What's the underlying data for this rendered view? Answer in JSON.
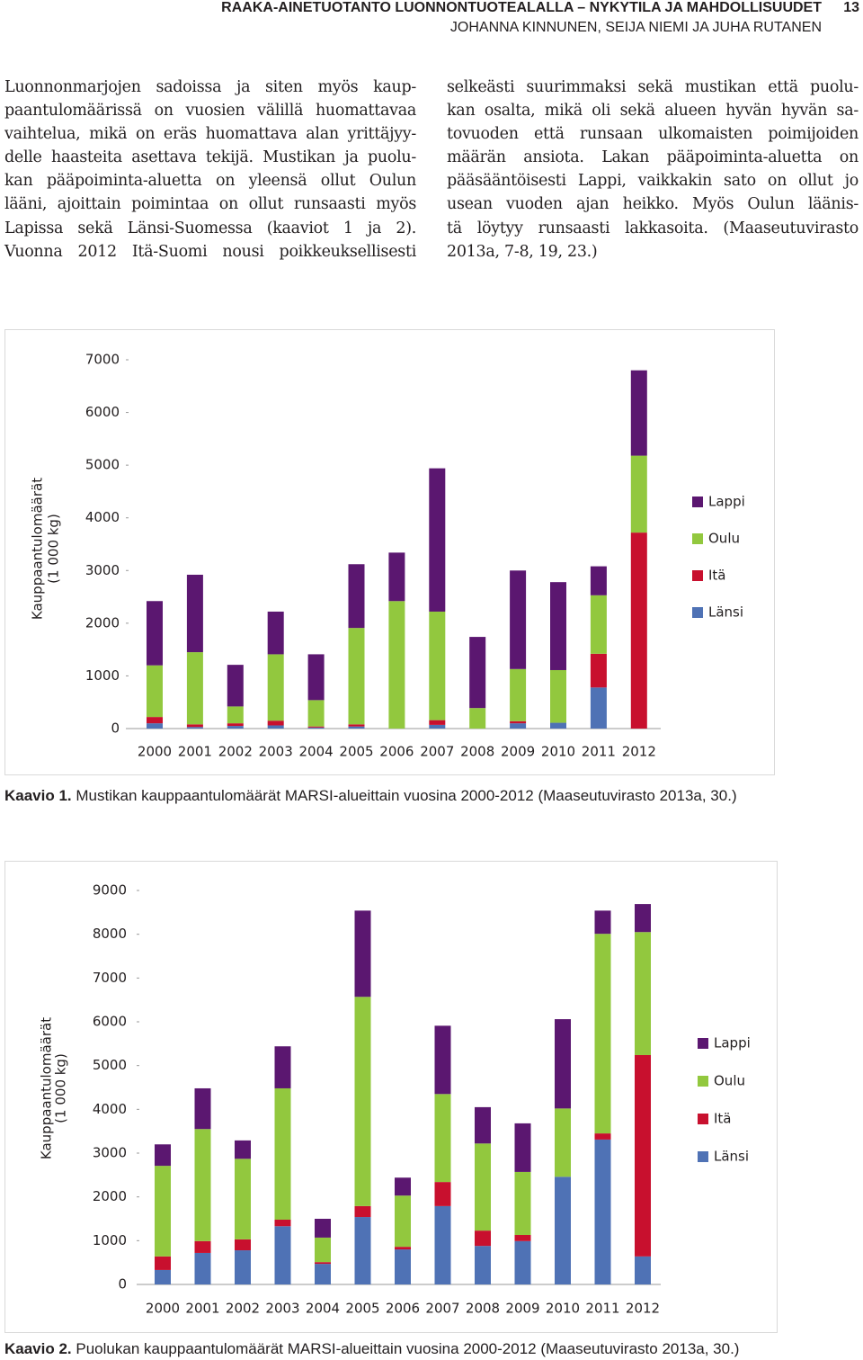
{
  "header": {
    "title": "RAAKA-AINETUOTANTO LUONNONTUOTEALALLA – NYKYTILA JA MAHDOLLISUUDET",
    "page": "13",
    "authors": "JOHANNA KINNUNEN, SEIJA NIEMI JA JUHA RUTANEN"
  },
  "columns": [
    [
      "Luonnonmarjojen sadoissa ja siten myös kaup-",
      "paantulomäärissä on vuosien välillä huomattavaa",
      "vaihtelua, mikä on eräs huomattava alan yrittäjyy-",
      "delle haasteita asettava tekijä. Mustikan ja puolu-",
      "kan pääpoiminta-aluetta on yleensä ollut Oulun",
      "lääni, ajoittain poimintaa on ollut runsaasti myös",
      "Lapissa sekä Länsi-Suomessa (kaaviot 1 ja 2).",
      "Vuonna 2012 Itä-Suomi nousi poikkeuksellisesti"
    ],
    [
      "selkeästi suurimmaksi sekä mustikan että puolu-",
      "kan osalta, mikä oli sekä alueen hyvän hyvän sa-",
      "tovuoden että runsaan ulkomaisten poimijoiden",
      "määrän ansiota. Lakan pääpoiminta-aluetta on",
      "pääsääntöisesti Lappi, vaikkakin sato on ollut jo",
      "usean vuoden ajan heikko. Myös Oulun läänis-",
      "tä löytyy runsaasti lakkasoita. (Maaseutuvirasto",
      "2013a, 7-8, 19, 23.)"
    ]
  ],
  "chart_data": [
    {
      "type": "stacked-bar",
      "caption_label": "Kaavio 1.",
      "caption": "Mustikan kauppaantulomäärät MARSI-alueittain vuosina 2000-2012 (Maaseutuvirasto 2013a, 30.)",
      "ylabel": [
        "Kauppaantulomäärät",
        "(1 000 kg)"
      ],
      "categories": [
        "2000",
        "2001",
        "2002",
        "2003",
        "2004",
        "2005",
        "2006",
        "2007",
        "2008",
        "2009",
        "2010",
        "2011",
        "2012"
      ],
      "series": [
        {
          "name": "Länsi",
          "color": "#4f72b5",
          "values": [
            100,
            30,
            50,
            60,
            20,
            40,
            0,
            70,
            0,
            100,
            110,
            780,
            0
          ]
        },
        {
          "name": "Itä",
          "color": "#c8102e",
          "values": [
            120,
            50,
            50,
            90,
            20,
            40,
            0,
            90,
            0,
            40,
            0,
            640,
            3720
          ]
        },
        {
          "name": "Oulu",
          "color": "#92c83e",
          "values": [
            980,
            1370,
            320,
            1260,
            500,
            1830,
            2420,
            2060,
            390,
            990,
            1000,
            1110,
            1460
          ]
        },
        {
          "name": "Lappi",
          "color": "#5b1770",
          "values": [
            1220,
            1470,
            790,
            810,
            870,
            1210,
            920,
            2720,
            1350,
            1870,
            1670,
            550,
            1620
          ]
        }
      ],
      "ylim": [
        0,
        7000
      ],
      "yticks": [
        0,
        1000,
        2000,
        3000,
        4000,
        5000,
        6000,
        7000
      ],
      "grid": false,
      "legend": "right"
    },
    {
      "type": "stacked-bar",
      "caption_label": "Kaavio 2.",
      "caption": "Puolukan kauppaantulomäärät MARSI-alueittain vuosina 2000-2012 (Maaseutuvirasto 2013a, 30.)",
      "ylabel": [
        "Kauppaantulomäärät",
        "(1 000 kg)"
      ],
      "categories": [
        "2000",
        "2001",
        "2002",
        "2003",
        "2004",
        "2005",
        "2006",
        "2007",
        "2008",
        "2009",
        "2010",
        "2011",
        "2012"
      ],
      "series": [
        {
          "name": "Länsi",
          "color": "#4f72b5",
          "values": [
            330,
            720,
            780,
            1330,
            470,
            1540,
            800,
            1790,
            880,
            990,
            2460,
            3310,
            640
          ]
        },
        {
          "name": "Itä",
          "color": "#c8102e",
          "values": [
            310,
            270,
            250,
            150,
            40,
            250,
            60,
            550,
            350,
            140,
            0,
            140,
            4600
          ]
        },
        {
          "name": "Oulu",
          "color": "#92c83e",
          "values": [
            2070,
            2560,
            1840,
            3000,
            560,
            4780,
            1170,
            2010,
            1990,
            1440,
            1560,
            4560,
            2810
          ]
        },
        {
          "name": "Lappi",
          "color": "#5b1770",
          "values": [
            490,
            930,
            420,
            960,
            430,
            1970,
            410,
            1560,
            830,
            1110,
            2040,
            530,
            640
          ]
        }
      ],
      "ylim": [
        0,
        9000
      ],
      "yticks": [
        0,
        1000,
        2000,
        3000,
        4000,
        5000,
        6000,
        7000,
        8000,
        9000
      ],
      "grid": false,
      "legend": "right"
    }
  ]
}
